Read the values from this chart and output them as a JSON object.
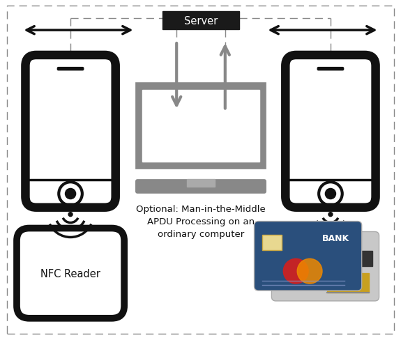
{
  "bg_color": "#ffffff",
  "server_label": "Server",
  "server_box_color": "#1a1a1a",
  "server_text_color": "#ffffff",
  "phone_color": "#111111",
  "laptop_color": "#888888",
  "signal_color": "#111111",
  "dashed_color": "#888888",
  "arrow_color": "#111111",
  "gray_arrow_color": "#888888",
  "laptop_label": "Optional: Man-in-the-Middle\nAPDU Processing on an\nordinary computer",
  "nfc_reader_label": "NFC Reader",
  "card_blue": "#2a4f7c",
  "card_gray": "#c8c8c8",
  "card_dark": "#555555",
  "card_gold": "#c8a020",
  "card_red": "#cc2222",
  "card_orange": "#ee8800"
}
